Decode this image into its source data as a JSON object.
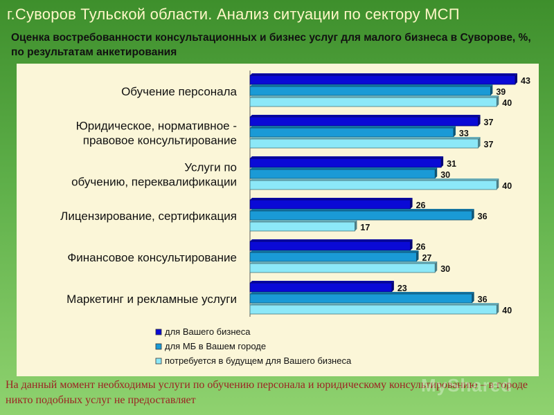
{
  "slide": {
    "title": "г.Суворов Тульской области. Анализ ситуации по сектору МСП",
    "subtitle": "Оценка востребованности консультационных и бизнес услуг для малого бизнеса в Суворове, %, по результатам анкетирования",
    "footer": "На данный момент необходимы услуги по обучению персонала и юридическому консультированию – в городе никто подобных услуг не предоставляет",
    "footer_overlay": "MyShared"
  },
  "chart_data": {
    "type": "bar",
    "orientation": "horizontal",
    "categories": [
      [
        "Обучение персонала"
      ],
      [
        "Юридическое, нормативное -",
        "правовое консультирование"
      ],
      [
        "Услуги по",
        "обучению, переквалификации"
      ],
      [
        "Лицензирование, сертификация"
      ],
      [
        "Финансовое консультирование"
      ],
      [
        "Маркетинг и рекламные услуги"
      ]
    ],
    "series": [
      {
        "name": "для Вашего бизнеса",
        "values": [
          43,
          37,
          31,
          26,
          26,
          23
        ],
        "color": "#0a0ad6"
      },
      {
        "name": "для МБ в Вашем городе",
        "values": [
          39,
          33,
          30,
          36,
          27,
          36
        ],
        "color": "#1a9ad6"
      },
      {
        "name": "потребуется в будущем для Вашего бизнеса",
        "values": [
          40,
          37,
          40,
          17,
          30,
          40
        ],
        "color": "#8ce8f8"
      }
    ],
    "xlim": [
      0,
      43
    ],
    "legend_position": "bottom",
    "grid": false
  }
}
